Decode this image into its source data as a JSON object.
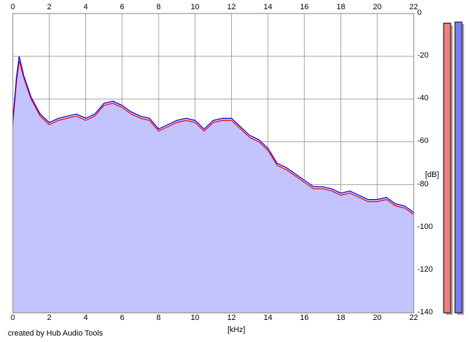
{
  "chart_data": {
    "type": "area",
    "xlabel": "[kHz]",
    "ylabel": "[dB]",
    "xlim": [
      0,
      22
    ],
    "ylim": [
      -140,
      0
    ],
    "x_ticks": [
      "0",
      "2",
      "4",
      "6",
      "8",
      "10",
      "12",
      "14",
      "16",
      "18",
      "20",
      "22"
    ],
    "y_ticks": [
      "0",
      "-20",
      "-40",
      "-60",
      "-80",
      "-100",
      "-120",
      "-140"
    ],
    "grid": true,
    "series": [
      {
        "color": "#ff0000",
        "x": [
          0,
          0.2,
          0.35,
          0.6,
          1,
          1.5,
          2,
          2.5,
          3,
          3.5,
          4,
          4.5,
          5,
          5.5,
          6,
          6.5,
          7,
          7.5,
          8,
          8.5,
          9,
          9.5,
          10,
          10.5,
          11,
          11.5,
          12,
          12.5,
          13,
          13.5,
          14,
          14.5,
          15,
          15.5,
          16,
          16.5,
          17,
          17.5,
          18,
          18.5,
          19,
          19.5,
          20,
          20.5,
          21,
          21.5,
          22
        ],
        "y": [
          -52,
          -32,
          -22,
          -30,
          -40,
          -48,
          -52,
          -50,
          -49,
          -48,
          -50,
          -48,
          -43,
          -42,
          -44,
          -47,
          -49,
          -50,
          -55,
          -53,
          -51,
          -50,
          -51,
          -55,
          -51,
          -50,
          -50,
          -54,
          -58,
          -60,
          -64,
          -71,
          -73,
          -76,
          -79,
          -82,
          -82,
          -83,
          -85,
          -84,
          -86,
          -88,
          -88,
          -87,
          -90,
          -91,
          -94
        ]
      },
      {
        "color": "#0000cc",
        "x": [
          0,
          0.2,
          0.35,
          0.6,
          1,
          1.5,
          2,
          2.5,
          3,
          3.5,
          4,
          4.5,
          5,
          5.5,
          6,
          6.5,
          7,
          7.5,
          8,
          8.5,
          9,
          9.5,
          10,
          10.5,
          11,
          11.5,
          12,
          12.5,
          13,
          13.5,
          14,
          14.5,
          15,
          15.5,
          16,
          16.5,
          17,
          17.5,
          18,
          18.5,
          19,
          19.5,
          20,
          20.5,
          21,
          21.5,
          22
        ],
        "y": [
          -50,
          -30,
          -20,
          -29,
          -39,
          -47,
          -51,
          -49,
          -48,
          -47,
          -49,
          -47,
          -42,
          -41,
          -43,
          -46,
          -48,
          -49,
          -54,
          -52,
          -50,
          -49,
          -50,
          -54,
          -50,
          -49,
          -49,
          -53,
          -57,
          -59,
          -63,
          -70,
          -72,
          -75,
          -78,
          -81,
          -81,
          -82,
          -84,
          -83,
          -85,
          -87,
          -87,
          -86,
          -89,
          -90,
          -93
        ]
      }
    ]
  },
  "level_meters": [
    {
      "color": "#f07e7e",
      "level_db": -4.5
    },
    {
      "color": "#7d7df2",
      "level_db": -4
    }
  ],
  "footer": {
    "credit": "created by Hub Audio Tools"
  }
}
